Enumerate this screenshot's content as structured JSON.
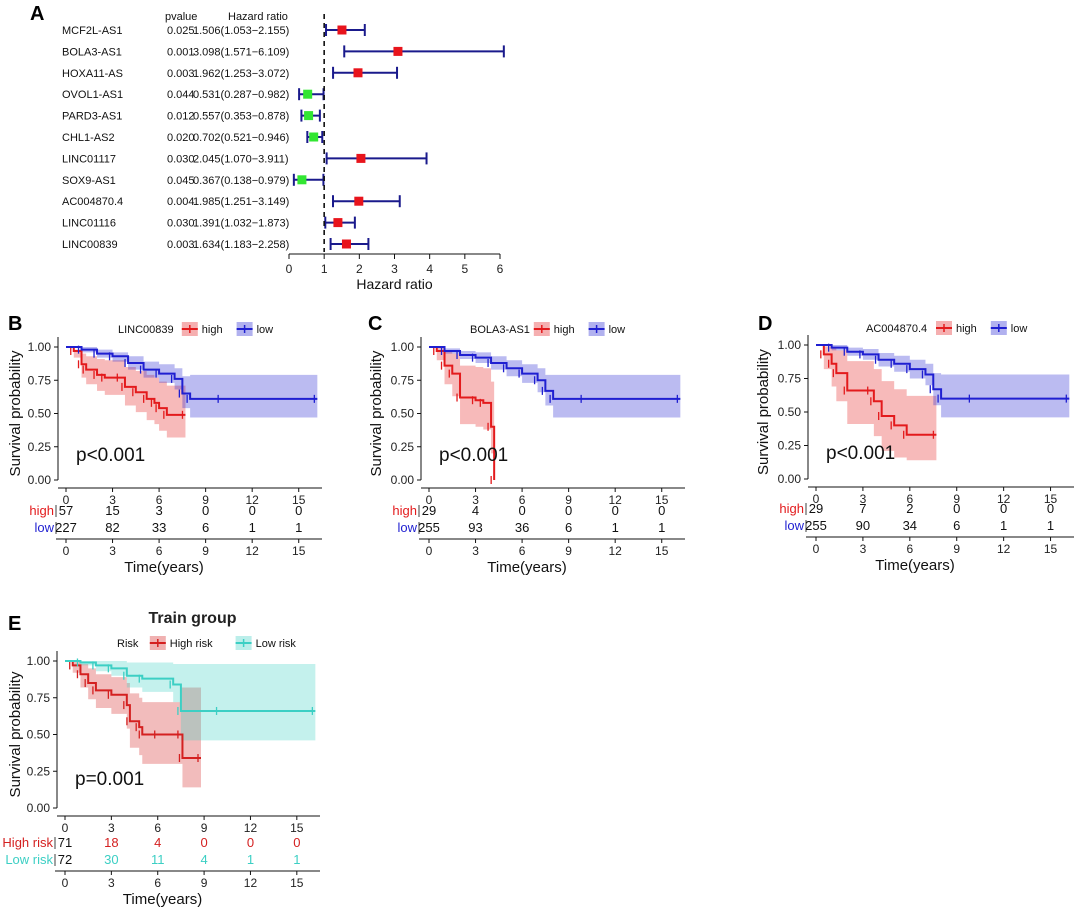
{
  "colors": {
    "risk": "#e8141c",
    "protect": "#32e632",
    "ci": "#1a1a8c",
    "high": "#e31a1c",
    "low": "#1f1fd1",
    "highRisk": "#d42020",
    "lowRisk": "#3ccfc4"
  },
  "chart_data": [
    {
      "type": "forest",
      "panel": "A",
      "headers": {
        "pvalue": "pvalue",
        "hr": "Hazard ratio"
      },
      "xlabel": "Hazard ratio",
      "xticks": [
        "0",
        "1",
        "2",
        "3",
        "4",
        "5",
        "6"
      ],
      "xlim": [
        0,
        6
      ],
      "reference": 1,
      "rows": [
        {
          "gene": "MCF2L-AS1",
          "pvalue": "0.025",
          "hr_text": "1.506(1.053−2.155)",
          "hr": 1.506,
          "lo": 1.053,
          "hi": 2.155
        },
        {
          "gene": "BOLA3-AS1",
          "pvalue": "0.001",
          "hr_text": "3.098(1.571−6.109)",
          "hr": 3.098,
          "lo": 1.571,
          "hi": 6.109
        },
        {
          "gene": "HOXA11-AS",
          "pvalue": "0.003",
          "hr_text": "1.962(1.253−3.072)",
          "hr": 1.962,
          "lo": 1.253,
          "hi": 3.072
        },
        {
          "gene": "OVOL1-AS1",
          "pvalue": "0.044",
          "hr_text": "0.531(0.287−0.982)",
          "hr": 0.531,
          "lo": 0.287,
          "hi": 0.982
        },
        {
          "gene": "PARD3-AS1",
          "pvalue": "0.012",
          "hr_text": "0.557(0.353−0.878)",
          "hr": 0.557,
          "lo": 0.353,
          "hi": 0.878
        },
        {
          "gene": "CHL1-AS2",
          "pvalue": "0.020",
          "hr_text": "0.702(0.521−0.946)",
          "hr": 0.702,
          "lo": 0.521,
          "hi": 0.946
        },
        {
          "gene": "LINC01117",
          "pvalue": "0.030",
          "hr_text": "2.045(1.070−3.911)",
          "hr": 2.045,
          "lo": 1.07,
          "hi": 3.911
        },
        {
          "gene": "SOX9-AS1",
          "pvalue": "0.045",
          "hr_text": "0.367(0.138−0.979)",
          "hr": 0.367,
          "lo": 0.138,
          "hi": 0.979
        },
        {
          "gene": "AC004870.4",
          "pvalue": "0.004",
          "hr_text": "1.985(1.251−3.149)",
          "hr": 1.985,
          "lo": 1.251,
          "hi": 3.149
        },
        {
          "gene": "LINC01116",
          "pvalue": "0.030",
          "hr_text": "1.391(1.032−1.873)",
          "hr": 1.391,
          "lo": 1.032,
          "hi": 1.873
        },
        {
          "gene": "LINC00839",
          "pvalue": "0.003",
          "hr_text": "1.634(1.183−2.258)",
          "hr": 1.634,
          "lo": 1.183,
          "hi": 2.258
        }
      ]
    },
    {
      "type": "km",
      "panel": "B",
      "legend_title": "LINC00839",
      "series": [
        {
          "name": "high",
          "key": "high",
          "curve": [
            [
              0,
              1
            ],
            [
              0.5,
              0.97
            ],
            [
              1,
              0.87
            ],
            [
              1.3,
              0.83
            ],
            [
              2,
              0.79
            ],
            [
              2.5,
              0.77
            ],
            [
              3.5,
              0.77
            ],
            [
              3.8,
              0.7
            ],
            [
              4.5,
              0.66
            ],
            [
              5.2,
              0.61
            ],
            [
              5.7,
              0.58
            ],
            [
              6,
              0.54
            ],
            [
              6.5,
              0.49
            ],
            [
              7.7,
              0.49
            ]
          ],
          "upper": [
            1,
            0.98,
            0.95,
            0.93,
            0.91,
            0.9,
            0.9,
            0.85,
            0.82,
            0.79,
            0.77,
            0.74,
            0.71,
            0.71
          ],
          "lower": [
            1,
            0.92,
            0.77,
            0.72,
            0.67,
            0.64,
            0.64,
            0.56,
            0.51,
            0.45,
            0.42,
            0.37,
            0.32,
            0.32
          ]
        },
        {
          "name": "low",
          "key": "low",
          "curve": [
            [
              0,
              1
            ],
            [
              1,
              0.98
            ],
            [
              2,
              0.95
            ],
            [
              3,
              0.93
            ],
            [
              4,
              0.88
            ],
            [
              5,
              0.83
            ],
            [
              6,
              0.8
            ],
            [
              7,
              0.76
            ],
            [
              7.5,
              0.65
            ],
            [
              8,
              0.61
            ],
            [
              10,
              0.61
            ],
            [
              16.2,
              0.61
            ]
          ],
          "upper": [
            1,
            1,
            0.98,
            0.96,
            0.93,
            0.89,
            0.87,
            0.84,
            0.78,
            0.79,
            0.79,
            0.79
          ],
          "lower": [
            1,
            0.96,
            0.92,
            0.89,
            0.83,
            0.77,
            0.73,
            0.68,
            0.54,
            0.47,
            0.47,
            0.47
          ]
        }
      ],
      "pvalue": "p<0.001",
      "xlabel": "Time(years)",
      "ylabel": "Survival probability",
      "xticks": [
        "0",
        "3",
        "6",
        "9",
        "12",
        "15"
      ],
      "yticks": [
        "0.00",
        "0.25",
        "0.50",
        "0.75",
        "1.00"
      ],
      "xlim": [
        0,
        16.5
      ],
      "ylim": [
        0,
        1
      ],
      "risk_table": {
        "rows": [
          {
            "label": "high",
            "key": "high",
            "values": [
              "57",
              "15",
              "3",
              "0",
              "0",
              "0"
            ]
          },
          {
            "label": "low",
            "key": "low",
            "values": [
              "227",
              "82",
              "33",
              "6",
              "1",
              "1"
            ]
          }
        ]
      }
    },
    {
      "type": "km",
      "panel": "C",
      "legend_title": "BOLA3-AS1",
      "series": [
        {
          "name": "high",
          "key": "high",
          "curve": [
            [
              0,
              1
            ],
            [
              0.5,
              0.97
            ],
            [
              1,
              0.86
            ],
            [
              1.5,
              0.8
            ],
            [
              2,
              0.62
            ],
            [
              3,
              0.6
            ],
            [
              3.5,
              0.58
            ],
            [
              4,
              0.4
            ],
            [
              4.2,
              0.0
            ]
          ],
          "upper": [
            1,
            1,
            0.97,
            0.95,
            0.86,
            0.85,
            0.84,
            0.74,
            0.74
          ],
          "lower": [
            1,
            0.9,
            0.72,
            0.63,
            0.42,
            0.4,
            0.38,
            0.2,
            0.0
          ]
        },
        {
          "name": "low",
          "key": "low",
          "curve": [
            [
              0,
              1
            ],
            [
              1,
              0.97
            ],
            [
              2,
              0.94
            ],
            [
              3,
              0.92
            ],
            [
              4,
              0.88
            ],
            [
              5,
              0.84
            ],
            [
              6,
              0.8
            ],
            [
              7,
              0.75
            ],
            [
              7.5,
              0.67
            ],
            [
              8,
              0.61
            ],
            [
              10,
              0.61
            ],
            [
              16.2,
              0.61
            ]
          ],
          "upper": [
            1,
            0.99,
            0.97,
            0.96,
            0.93,
            0.9,
            0.87,
            0.84,
            0.79,
            0.79,
            0.79,
            0.79
          ],
          "lower": [
            1,
            0.95,
            0.91,
            0.88,
            0.83,
            0.78,
            0.73,
            0.66,
            0.56,
            0.47,
            0.47,
            0.47
          ]
        }
      ],
      "pvalue": "p<0.001",
      "xlabel": "Time(years)",
      "ylabel": "Survival probability",
      "xticks": [
        "0",
        "3",
        "6",
        "9",
        "12",
        "15"
      ],
      "yticks": [
        "0.00",
        "0.25",
        "0.50",
        "0.75",
        "1.00"
      ],
      "xlim": [
        0,
        16.5
      ],
      "ylim": [
        0,
        1
      ],
      "risk_table": {
        "rows": [
          {
            "label": "high",
            "key": "high",
            "values": [
              "29",
              "4",
              "0",
              "0",
              "0",
              "0"
            ]
          },
          {
            "label": "low",
            "key": "low",
            "values": [
              "255",
              "93",
              "36",
              "6",
              "1",
              "1"
            ]
          }
        ]
      }
    },
    {
      "type": "km",
      "panel": "D",
      "legend_title": "AC004870.4",
      "series": [
        {
          "name": "high",
          "key": "high",
          "curve": [
            [
              0,
              1
            ],
            [
              0.5,
              0.93
            ],
            [
              1,
              0.86
            ],
            [
              1.3,
              0.79
            ],
            [
              2,
              0.66
            ],
            [
              3.5,
              0.66
            ],
            [
              3.7,
              0.58
            ],
            [
              4.2,
              0.47
            ],
            [
              5,
              0.4
            ],
            [
              5.8,
              0.33
            ],
            [
              7.7,
              0.33
            ]
          ],
          "upper": [
            1,
            0.99,
            0.98,
            0.96,
            0.88,
            0.88,
            0.82,
            0.73,
            0.67,
            0.62,
            0.62
          ],
          "lower": [
            1,
            0.82,
            0.69,
            0.58,
            0.41,
            0.41,
            0.32,
            0.21,
            0.16,
            0.14,
            0.14
          ]
        },
        {
          "name": "low",
          "key": "low",
          "curve": [
            [
              0,
              1
            ],
            [
              1,
              0.98
            ],
            [
              2,
              0.95
            ],
            [
              3,
              0.93
            ],
            [
              4,
              0.89
            ],
            [
              5,
              0.86
            ],
            [
              6,
              0.82
            ],
            [
              7,
              0.78
            ],
            [
              7.5,
              0.67
            ],
            [
              8,
              0.6
            ],
            [
              10,
              0.6
            ],
            [
              16.2,
              0.6
            ]
          ],
          "upper": [
            1,
            1,
            0.98,
            0.97,
            0.94,
            0.92,
            0.89,
            0.86,
            0.79,
            0.78,
            0.78,
            0.78
          ],
          "lower": [
            1,
            0.96,
            0.92,
            0.89,
            0.84,
            0.8,
            0.75,
            0.7,
            0.55,
            0.46,
            0.46,
            0.46
          ]
        }
      ],
      "pvalue": "p<0.001",
      "xlabel": "Time(years)",
      "ylabel": "Survival probability",
      "xticks": [
        "0",
        "3",
        "6",
        "9",
        "12",
        "15"
      ],
      "yticks": [
        "0.00",
        "0.25",
        "0.50",
        "0.75",
        "1.00"
      ],
      "xlim": [
        0,
        16.5
      ],
      "ylim": [
        0,
        1
      ],
      "risk_table": {
        "rows": [
          {
            "label": "high",
            "key": "high",
            "values": [
              "29",
              "7",
              "2",
              "0",
              "0",
              "0"
            ]
          },
          {
            "label": "low",
            "key": "low",
            "values": [
              "255",
              "90",
              "34",
              "6",
              "1",
              "1"
            ]
          }
        ]
      }
    },
    {
      "type": "km",
      "panel": "E",
      "title": "Train group",
      "legend_title": "Risk",
      "series": [
        {
          "name": "High risk",
          "key": "highRisk",
          "curve": [
            [
              0,
              1
            ],
            [
              0.5,
              0.97
            ],
            [
              1,
              0.91
            ],
            [
              1.5,
              0.85
            ],
            [
              2,
              0.8
            ],
            [
              3,
              0.77
            ],
            [
              4,
              0.7
            ],
            [
              4.2,
              0.59
            ],
            [
              4.8,
              0.55
            ],
            [
              5,
              0.5
            ],
            [
              6,
              0.5
            ],
            [
              7.5,
              0.5
            ],
            [
              7.6,
              0.34
            ],
            [
              8.8,
              0.34
            ]
          ],
          "upper": [
            1,
            1,
            0.98,
            0.95,
            0.91,
            0.89,
            0.85,
            0.78,
            0.75,
            0.72,
            0.72,
            0.82,
            0.82,
            0.82
          ],
          "lower": [
            1,
            0.92,
            0.82,
            0.74,
            0.68,
            0.64,
            0.54,
            0.41,
            0.36,
            0.3,
            0.3,
            0.3,
            0.14,
            0.14
          ]
        },
        {
          "name": "Low risk",
          "key": "lowRisk",
          "curve": [
            [
              0,
              1
            ],
            [
              1,
              0.99
            ],
            [
              2,
              0.97
            ],
            [
              3,
              0.95
            ],
            [
              4,
              0.9
            ],
            [
              5,
              0.88
            ],
            [
              7,
              0.84
            ],
            [
              7.5,
              0.66
            ],
            [
              10,
              0.66
            ],
            [
              16.2,
              0.66
            ]
          ],
          "upper": [
            1,
            1,
            1,
            1,
            0.99,
            0.99,
            0.98,
            0.98,
            0.98,
            0.98
          ],
          "lower": [
            1,
            0.97,
            0.93,
            0.9,
            0.82,
            0.79,
            0.72,
            0.46,
            0.46,
            0.46
          ]
        }
      ],
      "pvalue": "p=0.001",
      "xlabel": "Time(years)",
      "ylabel": "Survival probability",
      "xticks": [
        "0",
        "3",
        "6",
        "9",
        "12",
        "15"
      ],
      "yticks": [
        "0.00",
        "0.25",
        "0.50",
        "0.75",
        "1.00"
      ],
      "xlim": [
        0,
        16.5
      ],
      "ylim": [
        0,
        1
      ],
      "risk_table": {
        "rows": [
          {
            "label": "High risk",
            "key": "highRisk",
            "values": [
              "71",
              "18",
              "4",
              "0",
              "0",
              "0"
            ]
          },
          {
            "label": "Low risk",
            "key": "lowRisk",
            "values": [
              "72",
              "30",
              "11",
              "4",
              "1",
              "1"
            ]
          }
        ]
      }
    }
  ]
}
